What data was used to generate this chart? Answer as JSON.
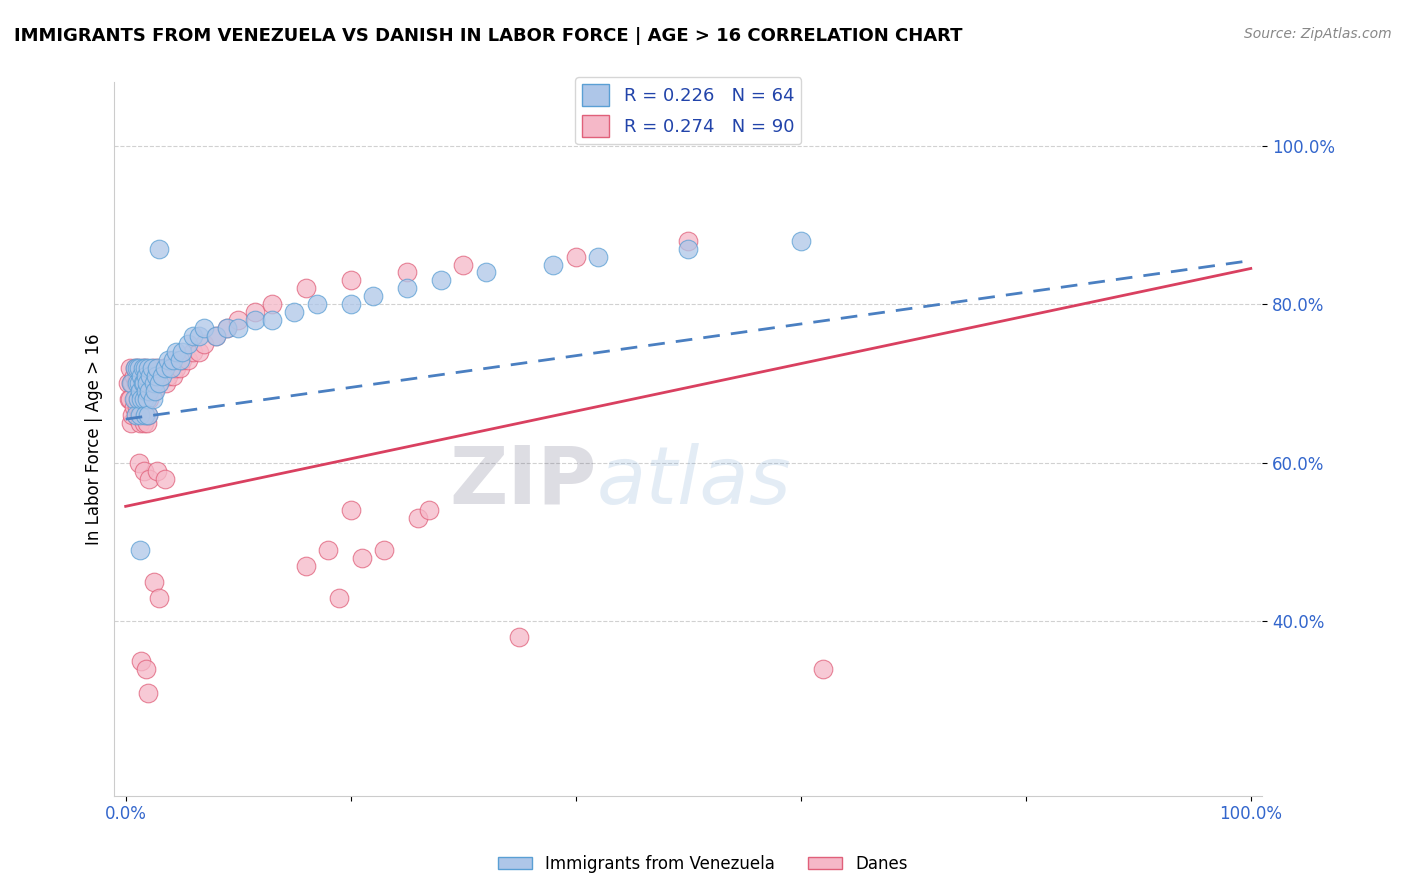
{
  "title": "IMMIGRANTS FROM VENEZUELA VS DANISH IN LABOR FORCE | AGE > 16 CORRELATION CHART",
  "source": "Source: ZipAtlas.com",
  "ylabel": "In Labor Force | Age > 16",
  "xlim": [
    -0.01,
    1.01
  ],
  "ylim": [
    0.18,
    1.08
  ],
  "xticks": [
    0.0,
    0.2,
    0.4,
    0.6,
    0.8,
    1.0
  ],
  "xtick_labels": [
    "0.0%",
    "",
    "",
    "",
    "",
    "100.0%"
  ],
  "ytick_labels_right": [
    "40.0%",
    "60.0%",
    "80.0%",
    "100.0%"
  ],
  "yticks_right": [
    0.4,
    0.6,
    0.8,
    1.0
  ],
  "blue_fill": "#aec6e8",
  "blue_edge": "#5a9fd4",
  "pink_fill": "#f5b8c8",
  "pink_edge": "#e0607a",
  "blue_line_color": "#4a7fc1",
  "pink_line_color": "#d94060",
  "blue_label": "Immigrants from Venezuela",
  "pink_label": "Danes",
  "R_blue": 0.226,
  "N_blue": 64,
  "R_pink": 0.274,
  "N_pink": 90,
  "watermark_zip": "ZIP",
  "watermark_atlas": "atlas",
  "background_color": "#ffffff",
  "grid_color": "#cccccc",
  "blue_trend_x0": 0.0,
  "blue_trend_y0": 0.655,
  "blue_trend_x1": 1.0,
  "blue_trend_y1": 0.855,
  "pink_trend_x0": 0.0,
  "pink_trend_y0": 0.545,
  "pink_trend_x1": 1.0,
  "pink_trend_y1": 0.845,
  "venezuela_x": [
    0.005,
    0.007,
    0.008,
    0.009,
    0.01,
    0.01,
    0.011,
    0.012,
    0.012,
    0.013,
    0.013,
    0.014,
    0.014,
    0.015,
    0.015,
    0.016,
    0.016,
    0.017,
    0.017,
    0.018,
    0.018,
    0.019,
    0.019,
    0.02,
    0.02,
    0.021,
    0.022,
    0.023,
    0.024,
    0.025,
    0.026,
    0.027,
    0.028,
    0.03,
    0.032,
    0.035,
    0.038,
    0.04,
    0.042,
    0.045,
    0.048,
    0.05,
    0.055,
    0.06,
    0.065,
    0.07,
    0.08,
    0.09,
    0.1,
    0.115,
    0.13,
    0.15,
    0.17,
    0.2,
    0.22,
    0.25,
    0.28,
    0.32,
    0.38,
    0.42,
    0.5,
    0.6,
    0.03,
    0.013
  ],
  "venezuela_y": [
    0.7,
    0.68,
    0.72,
    0.66,
    0.7,
    0.72,
    0.68,
    0.7,
    0.72,
    0.66,
    0.69,
    0.71,
    0.68,
    0.7,
    0.72,
    0.68,
    0.7,
    0.72,
    0.66,
    0.69,
    0.71,
    0.68,
    0.7,
    0.72,
    0.66,
    0.69,
    0.71,
    0.72,
    0.68,
    0.7,
    0.69,
    0.71,
    0.72,
    0.7,
    0.71,
    0.72,
    0.73,
    0.72,
    0.73,
    0.74,
    0.73,
    0.74,
    0.75,
    0.76,
    0.76,
    0.77,
    0.76,
    0.77,
    0.77,
    0.78,
    0.78,
    0.79,
    0.8,
    0.8,
    0.81,
    0.82,
    0.83,
    0.84,
    0.85,
    0.86,
    0.87,
    0.88,
    0.87,
    0.49
  ],
  "danes_x": [
    0.002,
    0.003,
    0.004,
    0.004,
    0.005,
    0.005,
    0.006,
    0.006,
    0.007,
    0.007,
    0.008,
    0.008,
    0.009,
    0.009,
    0.01,
    0.01,
    0.011,
    0.011,
    0.012,
    0.012,
    0.013,
    0.013,
    0.014,
    0.014,
    0.015,
    0.015,
    0.016,
    0.016,
    0.017,
    0.017,
    0.018,
    0.018,
    0.019,
    0.019,
    0.02,
    0.02,
    0.021,
    0.022,
    0.023,
    0.024,
    0.025,
    0.026,
    0.027,
    0.028,
    0.029,
    0.03,
    0.032,
    0.034,
    0.036,
    0.038,
    0.04,
    0.042,
    0.045,
    0.048,
    0.05,
    0.055,
    0.06,
    0.065,
    0.07,
    0.08,
    0.09,
    0.1,
    0.115,
    0.13,
    0.16,
    0.2,
    0.25,
    0.3,
    0.4,
    0.5,
    0.014,
    0.018,
    0.025,
    0.03,
    0.02,
    0.2,
    0.26,
    0.27,
    0.35,
    0.62,
    0.012,
    0.016,
    0.021,
    0.028,
    0.035,
    0.16,
    0.18,
    0.19,
    0.21,
    0.23
  ],
  "danes_y": [
    0.7,
    0.68,
    0.68,
    0.72,
    0.65,
    0.7,
    0.66,
    0.7,
    0.67,
    0.71,
    0.68,
    0.72,
    0.66,
    0.7,
    0.67,
    0.71,
    0.68,
    0.72,
    0.66,
    0.7,
    0.65,
    0.69,
    0.67,
    0.71,
    0.68,
    0.72,
    0.65,
    0.7,
    0.66,
    0.71,
    0.68,
    0.72,
    0.65,
    0.7,
    0.66,
    0.71,
    0.68,
    0.7,
    0.71,
    0.72,
    0.69,
    0.7,
    0.71,
    0.72,
    0.7,
    0.7,
    0.71,
    0.72,
    0.7,
    0.71,
    0.72,
    0.71,
    0.72,
    0.72,
    0.73,
    0.73,
    0.74,
    0.74,
    0.75,
    0.76,
    0.77,
    0.78,
    0.79,
    0.8,
    0.82,
    0.83,
    0.84,
    0.85,
    0.86,
    0.88,
    0.35,
    0.34,
    0.45,
    0.43,
    0.31,
    0.54,
    0.53,
    0.54,
    0.38,
    0.34,
    0.6,
    0.59,
    0.58,
    0.59,
    0.58,
    0.47,
    0.49,
    0.43,
    0.48,
    0.49
  ]
}
